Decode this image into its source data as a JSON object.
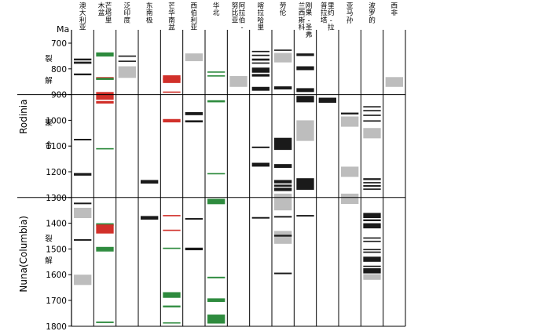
{
  "axis": {
    "unit": "Ma",
    "ticks": [
      700,
      800,
      900,
      1000,
      1100,
      1200,
      1300,
      1400,
      1500,
      1600,
      1700,
      1800
    ]
  },
  "columns": [
    "澳大利亚",
    "芒塔里木盆",
    "泛印度",
    "东南极",
    "芒华南盆",
    "西伯利亚",
    "华北",
    "阿拉伯-努比亚",
    "喀拉哈里",
    "劳伦",
    "刚果-圣弗兰西斯科",
    "里约-拉普拉塔",
    "亚马孙",
    "波罗的",
    "西非"
  ],
  "supercontinents": [
    {
      "name": "Rodinia",
      "stages": [
        "裂解",
        "聚合"
      ]
    },
    {
      "name": "Nuna(Columbia)",
      "stages": [
        "裂解"
      ]
    }
  ],
  "boundaries_ma": [
    900,
    1300
  ],
  "colors": {
    "black": "#1a1a1a",
    "green": "#2e8b3e",
    "red": "#d1302a",
    "gray": "#bdbdbd"
  },
  "events": [
    {
      "col": 0,
      "from": 760,
      "to": 767,
      "color": "black"
    },
    {
      "col": 0,
      "from": 772,
      "to": 780,
      "color": "black"
    },
    {
      "col": 0,
      "from": 818,
      "to": 825,
      "color": "black"
    },
    {
      "col": 0,
      "from": 1072,
      "to": 1078,
      "color": "black"
    },
    {
      "col": 0,
      "from": 1205,
      "to": 1215,
      "color": "black"
    },
    {
      "col": 0,
      "from": 1320,
      "to": 1326,
      "color": "black"
    },
    {
      "col": 0,
      "from": 1340,
      "to": 1380,
      "color": "gray"
    },
    {
      "col": 0,
      "from": 1462,
      "to": 1468,
      "color": "black"
    },
    {
      "col": 0,
      "from": 1600,
      "to": 1640,
      "color": "gray"
    },
    {
      "col": 1,
      "from": 736,
      "to": 752,
      "color": "green"
    },
    {
      "col": 1,
      "from": 832,
      "to": 842,
      "color": "red"
    },
    {
      "col": 1,
      "from": 835,
      "to": 843,
      "color": "green"
    },
    {
      "col": 1,
      "from": 890,
      "to": 920,
      "color": "red"
    },
    {
      "col": 1,
      "from": 925,
      "to": 935,
      "color": "red"
    },
    {
      "col": 1,
      "from": 1108,
      "to": 1113,
      "color": "green"
    },
    {
      "col": 1,
      "from": 1400,
      "to": 1410,
      "color": "green"
    },
    {
      "col": 1,
      "from": 1405,
      "to": 1440,
      "color": "red"
    },
    {
      "col": 1,
      "from": 1492,
      "to": 1505,
      "color": "green"
    },
    {
      "col": 1,
      "from": 1505,
      "to": 1510,
      "color": "green"
    },
    {
      "col": 1,
      "from": 1782,
      "to": 1788,
      "color": "green"
    },
    {
      "col": 2,
      "from": 748,
      "to": 753,
      "color": "black"
    },
    {
      "col": 2,
      "from": 768,
      "to": 772,
      "color": "black"
    },
    {
      "col": 2,
      "from": 790,
      "to": 835,
      "color": "gray"
    },
    {
      "col": 3,
      "from": 1232,
      "to": 1246,
      "color": "black"
    },
    {
      "col": 3,
      "from": 1372,
      "to": 1386,
      "color": "black"
    },
    {
      "col": 4,
      "from": 825,
      "to": 855,
      "color": "red"
    },
    {
      "col": 4,
      "from": 835,
      "to": 843,
      "color": "red"
    },
    {
      "col": 4,
      "from": 888,
      "to": 893,
      "color": "red"
    },
    {
      "col": 4,
      "from": 995,
      "to": 1008,
      "color": "red"
    },
    {
      "col": 4,
      "from": 1368,
      "to": 1373,
      "color": "red"
    },
    {
      "col": 4,
      "from": 1425,
      "to": 1430,
      "color": "red"
    },
    {
      "col": 4,
      "from": 1495,
      "to": 1500,
      "color": "green"
    },
    {
      "col": 4,
      "from": 1668,
      "to": 1690,
      "color": "green"
    },
    {
      "col": 4,
      "from": 1720,
      "to": 1727,
      "color": "green"
    },
    {
      "col": 4,
      "from": 1785,
      "to": 1790,
      "color": "green"
    },
    {
      "col": 5,
      "from": 740,
      "to": 770,
      "color": "gray"
    },
    {
      "col": 5,
      "from": 968,
      "to": 980,
      "color": "black"
    },
    {
      "col": 5,
      "from": 1000,
      "to": 1008,
      "color": "black"
    },
    {
      "col": 5,
      "from": 1380,
      "to": 1386,
      "color": "black"
    },
    {
      "col": 5,
      "from": 1495,
      "to": 1505,
      "color": "black"
    },
    {
      "col": 6,
      "from": 810,
      "to": 815,
      "color": "green"
    },
    {
      "col": 6,
      "from": 825,
      "to": 830,
      "color": "green"
    },
    {
      "col": 6,
      "from": 922,
      "to": 930,
      "color": "green"
    },
    {
      "col": 6,
      "from": 1205,
      "to": 1210,
      "color": "green"
    },
    {
      "col": 6,
      "from": 1305,
      "to": 1326,
      "color": "green"
    },
    {
      "col": 6,
      "from": 1608,
      "to": 1614,
      "color": "green"
    },
    {
      "col": 6,
      "from": 1692,
      "to": 1706,
      "color": "green"
    },
    {
      "col": 6,
      "from": 1755,
      "to": 1790,
      "color": "green"
    },
    {
      "col": 7,
      "from": 828,
      "to": 870,
      "color": "gray"
    },
    {
      "col": 8,
      "from": 730,
      "to": 735,
      "color": "black"
    },
    {
      "col": 8,
      "from": 745,
      "to": 750,
      "color": "black"
    },
    {
      "col": 8,
      "from": 760,
      "to": 768,
      "color": "black"
    },
    {
      "col": 8,
      "from": 775,
      "to": 780,
      "color": "black"
    },
    {
      "col": 8,
      "from": 795,
      "to": 815,
      "color": "black"
    },
    {
      "col": 8,
      "from": 820,
      "to": 830,
      "color": "black"
    },
    {
      "col": 8,
      "from": 870,
      "to": 885,
      "color": "black"
    },
    {
      "col": 8,
      "from": 1102,
      "to": 1108,
      "color": "black"
    },
    {
      "col": 8,
      "from": 1165,
      "to": 1180,
      "color": "black"
    },
    {
      "col": 8,
      "from": 1376,
      "to": 1382,
      "color": "black"
    },
    {
      "col": 9,
      "from": 725,
      "to": 730,
      "color": "black"
    },
    {
      "col": 9,
      "from": 738,
      "to": 775,
      "color": "gray"
    },
    {
      "col": 9,
      "from": 868,
      "to": 880,
      "color": "black"
    },
    {
      "col": 9,
      "from": 1068,
      "to": 1115,
      "color": "black"
    },
    {
      "col": 9,
      "from": 1170,
      "to": 1185,
      "color": "black"
    },
    {
      "col": 9,
      "from": 1232,
      "to": 1245,
      "color": "black"
    },
    {
      "col": 9,
      "from": 1250,
      "to": 1258,
      "color": "black"
    },
    {
      "col": 9,
      "from": 1262,
      "to": 1275,
      "color": "black"
    },
    {
      "col": 9,
      "from": 1285,
      "to": 1350,
      "color": "gray"
    },
    {
      "col": 9,
      "from": 1372,
      "to": 1378,
      "color": "black"
    },
    {
      "col": 9,
      "from": 1430,
      "to": 1480,
      "color": "gray"
    },
    {
      "col": 9,
      "from": 1445,
      "to": 1452,
      "color": "black"
    },
    {
      "col": 9,
      "from": 1592,
      "to": 1598,
      "color": "black"
    },
    {
      "col": 10,
      "from": 740,
      "to": 750,
      "color": "black"
    },
    {
      "col": 10,
      "from": 790,
      "to": 805,
      "color": "black"
    },
    {
      "col": 10,
      "from": 875,
      "to": 890,
      "color": "black"
    },
    {
      "col": 10,
      "from": 905,
      "to": 930,
      "color": "black"
    },
    {
      "col": 10,
      "from": 1000,
      "to": 1080,
      "color": "gray"
    },
    {
      "col": 10,
      "from": 1225,
      "to": 1270,
      "color": "black"
    },
    {
      "col": 10,
      "from": 1368,
      "to": 1374,
      "color": "black"
    },
    {
      "col": 11,
      "from": 912,
      "to": 932,
      "color": "black"
    },
    {
      "col": 12,
      "from": 970,
      "to": 977,
      "color": "black"
    },
    {
      "col": 12,
      "from": 985,
      "to": 1025,
      "color": "gray"
    },
    {
      "col": 12,
      "from": 1180,
      "to": 1220,
      "color": "gray"
    },
    {
      "col": 12,
      "from": 1285,
      "to": 1325,
      "color": "gray"
    },
    {
      "col": 13,
      "from": 945,
      "to": 950,
      "color": "black"
    },
    {
      "col": 13,
      "from": 960,
      "to": 965,
      "color": "black"
    },
    {
      "col": 13,
      "from": 978,
      "to": 983,
      "color": "black"
    },
    {
      "col": 13,
      "from": 1000,
      "to": 1004,
      "color": "black"
    },
    {
      "col": 13,
      "from": 1030,
      "to": 1070,
      "color": "gray"
    },
    {
      "col": 13,
      "from": 1225,
      "to": 1232,
      "color": "black"
    },
    {
      "col": 13,
      "from": 1240,
      "to": 1245,
      "color": "black"
    },
    {
      "col": 13,
      "from": 1252,
      "to": 1258,
      "color": "black"
    },
    {
      "col": 13,
      "from": 1265,
      "to": 1270,
      "color": "black"
    },
    {
      "col": 13,
      "from": 1360,
      "to": 1380,
      "color": "black"
    },
    {
      "col": 13,
      "from": 1385,
      "to": 1392,
      "color": "black"
    },
    {
      "col": 13,
      "from": 1400,
      "to": 1420,
      "color": "black"
    },
    {
      "col": 13,
      "from": 1455,
      "to": 1460,
      "color": "black"
    },
    {
      "col": 13,
      "from": 1468,
      "to": 1472,
      "color": "black"
    },
    {
      "col": 13,
      "from": 1500,
      "to": 1505,
      "color": "black"
    },
    {
      "col": 13,
      "from": 1510,
      "to": 1515,
      "color": "black"
    },
    {
      "col": 13,
      "from": 1530,
      "to": 1550,
      "color": "black"
    },
    {
      "col": 13,
      "from": 1565,
      "to": 1570,
      "color": "black"
    },
    {
      "col": 13,
      "from": 1575,
      "to": 1595,
      "color": "black"
    },
    {
      "col": 13,
      "from": 1598,
      "to": 1620,
      "color": "gray"
    },
    {
      "col": 14,
      "from": 832,
      "to": 870,
      "color": "gray"
    }
  ]
}
